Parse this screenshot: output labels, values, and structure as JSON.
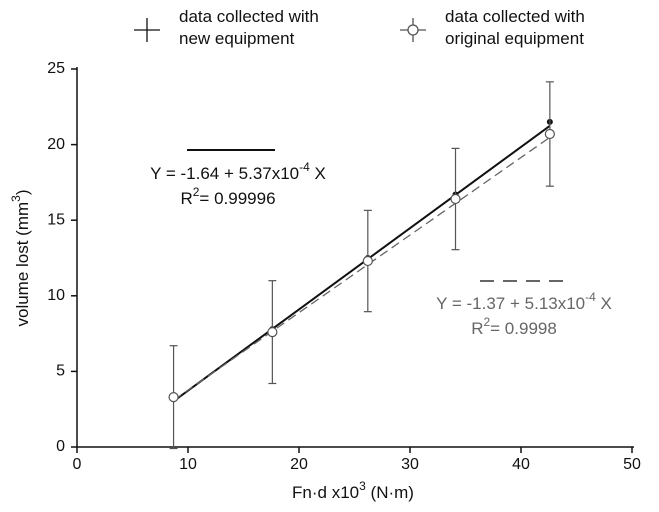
{
  "chart_data": {
    "type": "scatter",
    "xlabel": [
      "Fn·d  x10",
      "3",
      "  (N·m)"
    ],
    "ylabel": [
      "volume lost (mm",
      "3",
      ")"
    ],
    "xlim": [
      0,
      50
    ],
    "xticks": [
      0,
      10,
      20,
      30,
      40,
      50
    ],
    "ylim": [
      0,
      25
    ],
    "yticks": [
      0,
      5,
      10,
      15,
      20,
      25
    ],
    "series": [
      {
        "name": "data collected with\nnew equipment",
        "color": "#111111",
        "marker": "filled",
        "x": [
          8.7,
          17.6,
          26.2,
          34.1,
          42.6
        ],
        "values": [
          3.2,
          7.8,
          12.5,
          16.7,
          21.5
        ]
      },
      {
        "name": "data collected with\noriginal equipment",
        "color": "#555555",
        "marker": "open",
        "x": [
          8.7,
          17.6,
          26.2,
          34.1,
          42.6
        ],
        "values": [
          3.3,
          7.6,
          12.3,
          16.4,
          20.7
        ],
        "errors": [
          3.4,
          3.4,
          3.35,
          3.35,
          3.45
        ]
      }
    ],
    "fit_lines": [
      {
        "color": "#111111",
        "dashed": false,
        "x": [
          8.7,
          42.6
        ],
        "values": [
          3.03,
          21.24
        ]
      },
      {
        "color": "#666666",
        "dashed": true,
        "x": [
          8.7,
          42.6
        ],
        "values": [
          3.09,
          20.48
        ]
      }
    ],
    "annotations": [
      {
        "color": "#111111",
        "lines": [
          [
            "Y = -1.64 + 5.37x10",
            "-4",
            " X"
          ],
          [
            "R",
            "2",
            "= 0.99996"
          ]
        ]
      },
      {
        "color": "#666666",
        "lines": [
          [
            "Y = -1.37 + 5.13x10",
            "-4",
            " X"
          ],
          [
            "R",
            "2",
            "= 0.9998"
          ]
        ]
      }
    ]
  }
}
